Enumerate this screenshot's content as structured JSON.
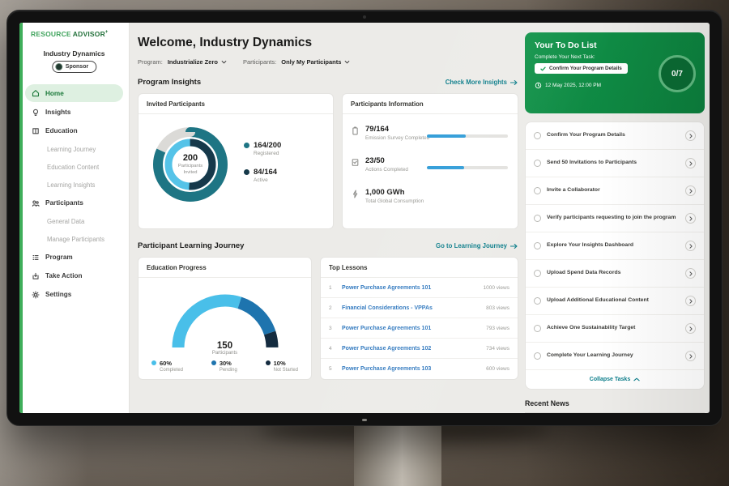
{
  "brand": {
    "logo_resource": "RESOURCE",
    "logo_advisor": "ADVISOR",
    "logo_plus": "+",
    "accent_green": "#3FAE5A"
  },
  "sidebar": {
    "org_name": "Industry Dynamics",
    "role_badge": "Sponsor",
    "items": [
      {
        "label": "Home"
      },
      {
        "label": "Insights"
      },
      {
        "label": "Education"
      },
      {
        "label": "Learning Journey"
      },
      {
        "label": "Education Content"
      },
      {
        "label": "Learning Insights"
      },
      {
        "label": "Participants"
      },
      {
        "label": "General Data"
      },
      {
        "label": "Manage Participants"
      },
      {
        "label": "Program"
      },
      {
        "label": "Take Action"
      },
      {
        "label": "Settings"
      }
    ]
  },
  "header": {
    "welcome": "Welcome, Industry Dynamics",
    "program_label": "Program:",
    "program_value": "Industrialize Zero",
    "participants_label": "Participants:",
    "participants_value": "Only My Participants"
  },
  "program_insights": {
    "title": "Program Insights",
    "link_label": "Check More Insights",
    "invited_card": {
      "title": "Invited Participants",
      "center_value": "200",
      "center_label": "Participants Invited",
      "legend": [
        {
          "value": "164/200",
          "label": "Registered"
        },
        {
          "value": "84/164",
          "label": "Active"
        }
      ]
    },
    "info_card": {
      "title": "Participants Information",
      "rows": [
        {
          "value": "79/164",
          "label": "Emission Survey Completed",
          "progress": 48
        },
        {
          "value": "23/50",
          "label": "Actions Completed",
          "progress": 46
        },
        {
          "value": "1,000 GWh",
          "label": "Total Global Consumption"
        }
      ]
    }
  },
  "learning": {
    "title": "Participant Learning Journey",
    "link_label": "Go to Learning Journey",
    "education_card": {
      "title": "Education Progress",
      "center_value": "150",
      "center_label": "Participants"
    },
    "top_lessons": {
      "title": "Top Lessons",
      "rows": [
        {
          "rank": "1",
          "title": "Power Purchase Agreements 101",
          "views": "1000 views"
        },
        {
          "rank": "2",
          "title": "Financial Considerations - VPPAs",
          "views": "803 views"
        },
        {
          "rank": "3",
          "title": "Power Purchase Agreements 101",
          "views": "793 views"
        },
        {
          "rank": "4",
          "title": "Power Purchase Agreements 102",
          "views": "734 views"
        },
        {
          "rank": "5",
          "title": "Power Purchase Agreements 103",
          "views": "600 views"
        }
      ]
    }
  },
  "todo": {
    "title": "Your To Do List",
    "subtitle": "Complete Your Next Task:",
    "next_task": "Confirm Your Program Details",
    "due": "12 May 2025, 12:00 PM",
    "progress": "0/7",
    "header_color": "#0E8F41",
    "tasks": [
      "Confirm Your Program Details",
      "Send 50 Invitations to Participants",
      "Invite a Collaborator",
      "Verify participants requesting to join the program",
      "Explore Your Insights Dashboard",
      "Upload Spend Data Records",
      "Upload Additional Educational Content",
      "Achieve One Sustainability Target",
      "Complete Your Learning Journey"
    ],
    "collapse_label": "Collapse Tasks"
  },
  "news": {
    "title": "Recent News"
  },
  "colors": {
    "link_teal": "#0B7D8A",
    "link_blue": "#2E77BE",
    "progress_blue": "#2F9CD8",
    "active_nav_bg": "#DEF0E1"
  },
  "chart_data": [
    {
      "type": "donut",
      "title": "Invited Participants",
      "center": {
        "value": 200,
        "label": "Participants Invited"
      },
      "outer": {
        "name": "Registered",
        "value": 164,
        "total": 200,
        "pct": 82,
        "color": "#1E7584",
        "track": "#DBDAD7"
      },
      "inner": {
        "name": "Active",
        "value": 84,
        "total": 164,
        "pct": 51,
        "color": "#16394A",
        "track": "#55C3E8"
      }
    },
    {
      "type": "gauge",
      "title": "Education Progress",
      "center": {
        "value": 150,
        "label": "Participants"
      },
      "segments": [
        {
          "label": "Completed",
          "pct": 60,
          "pct_label": "60%",
          "offset": 0,
          "color": "#49BFE9"
        },
        {
          "label": "Pending",
          "pct": 30,
          "pct_label": "30%",
          "offset": 60,
          "color": "#1E74AE"
        },
        {
          "label": "Not Started",
          "pct": 10,
          "pct_label": "10%",
          "offset": 90,
          "color": "#142B3F"
        }
      ]
    },
    {
      "type": "bar",
      "title": "Participants Information",
      "items": [
        {
          "label": "Emission Survey Completed",
          "value": 79,
          "total": 164,
          "pct": 48
        },
        {
          "label": "Actions Completed",
          "value": 23,
          "total": 50,
          "pct": 46
        }
      ],
      "bar_color": "#2F9CD8"
    }
  ]
}
